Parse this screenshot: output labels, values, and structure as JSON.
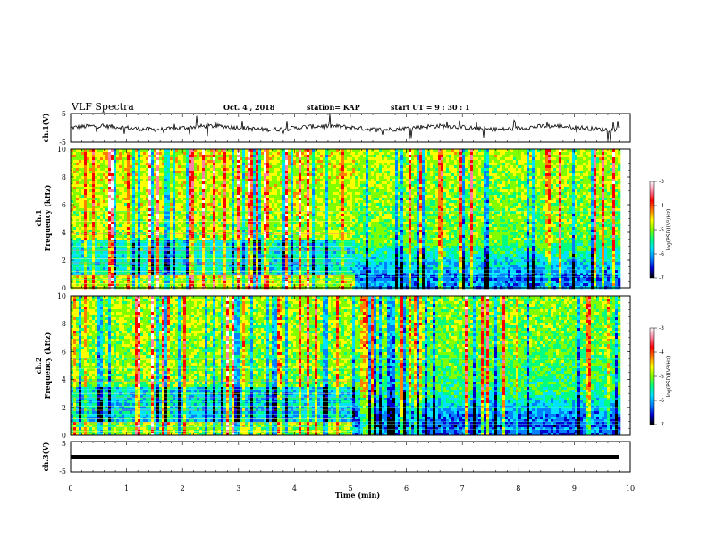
{
  "header": {
    "title": "VLF Spectra",
    "date": "Oct. 4  , 2018",
    "station": "station= KAP",
    "start": "start  UT =   9 : 30 : 1"
  },
  "chart_data": {
    "type": "heatmap",
    "x_axis": {
      "label": "Time (min)",
      "range": [
        0,
        10
      ],
      "ticks": [
        "0",
        "1",
        "2",
        "3",
        "4",
        "5",
        "6",
        "7",
        "8",
        "9",
        "10"
      ]
    },
    "panels": [
      {
        "name": "ch.1(V)",
        "type": "line",
        "ylim": [
          -5,
          5
        ],
        "yticks": [
          "5",
          "-5"
        ],
        "ylabel": "ch.1(V)"
      },
      {
        "name": "ch.1 spectrogram",
        "type": "heatmap",
        "ylabel_1": "ch.1",
        "ylabel_2": "Frequency (kHz)",
        "ylim": [
          0,
          10
        ],
        "yticks": [
          "0",
          "2",
          "4",
          "6",
          "8",
          "10"
        ]
      },
      {
        "name": "ch.2 spectrogram",
        "type": "heatmap",
        "ylabel_1": "ch.2",
        "ylabel_2": "Frequency (kHz)",
        "ylim": [
          0,
          10
        ],
        "yticks": [
          "0",
          "2",
          "4",
          "6",
          "8",
          "10"
        ]
      },
      {
        "name": "ch.3(V)",
        "type": "line",
        "ylim": [
          -5,
          5
        ],
        "yticks": [
          "5",
          "-5"
        ],
        "ylabel": "ch.3(V)",
        "value": -1
      }
    ],
    "colorbar": {
      "label": "log(PSD)(V²/Hz)",
      "range": [
        -7,
        -3
      ],
      "ticks": [
        "-3",
        "-4",
        "-5",
        "-6",
        "-7"
      ],
      "colors": [
        "#000000",
        "#0000d0",
        "#0080ff",
        "#00e0ff",
        "#00ff80",
        "#80ff00",
        "#ffff00",
        "#ff8000",
        "#ff0000",
        "#ff80a0",
        "#ffffff"
      ]
    },
    "data_end_min": 9.8,
    "transition_min": 5.05
  }
}
